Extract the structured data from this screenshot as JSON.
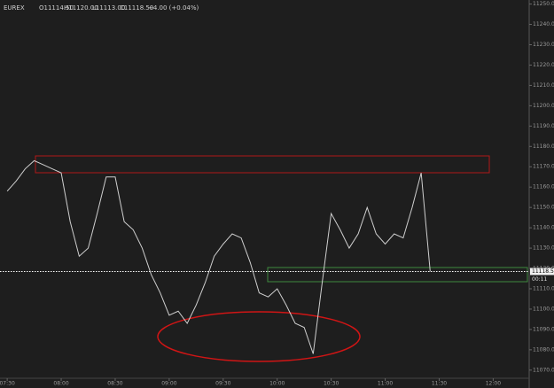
{
  "chart_data": {
    "type": "line",
    "instrument": "EUREX",
    "ohlc_header": [
      "O11114.50",
      "H11120.00",
      "L11113.00",
      "C11118.50",
      "+4.00 (+0.04%)"
    ],
    "x": [
      450,
      455,
      460,
      465,
      470,
      475,
      480,
      485,
      490,
      495,
      500,
      505,
      510,
      515,
      520,
      525,
      530,
      535,
      540,
      545,
      550,
      555,
      560,
      565,
      570,
      575,
      580,
      585,
      590,
      595,
      600,
      605,
      610,
      615,
      620,
      625,
      630,
      635,
      640,
      645,
      650,
      655,
      660,
      665,
      670,
      675,
      680,
      685
    ],
    "series": [
      {
        "color": "#cfcfcf",
        "values": [
          11158,
          11163,
          11169,
          11173,
          11171,
          11169,
          11167,
          11143,
          11126,
          11130,
          11147,
          11165,
          11165,
          11143,
          11139,
          11130,
          11117,
          11108,
          11097,
          11099,
          11093,
          11102,
          11113,
          11126,
          11132,
          11137,
          11135,
          11123,
          11108,
          11106,
          11110,
          11102,
          11093,
          11091,
          11078,
          11113,
          11147,
          11139,
          11130,
          11137,
          11150,
          11137,
          11132,
          11137,
          11135,
          11150,
          11167,
          11118.5
        ]
      }
    ],
    "xlim": [
      446,
      740
    ],
    "xticks": [
      {
        "value": 450,
        "label": "07:30"
      },
      {
        "value": 480,
        "label": "08:00"
      },
      {
        "value": 510,
        "label": "08:30"
      },
      {
        "value": 540,
        "label": "09:00"
      },
      {
        "value": 570,
        "label": "09:30"
      },
      {
        "value": 600,
        "label": "10:00"
      },
      {
        "value": 630,
        "label": "10:30"
      },
      {
        "value": 660,
        "label": "11:00"
      },
      {
        "value": 690,
        "label": "11:30"
      },
      {
        "value": 720,
        "label": "12:00"
      }
    ],
    "ylim": [
      11066,
      11252
    ],
    "yticks": [
      {
        "value": 11250,
        "label": "11250.00"
      },
      {
        "value": 11240,
        "label": "11240.00"
      },
      {
        "value": 11230,
        "label": "11230.00"
      },
      {
        "value": 11220,
        "label": "11220.00"
      },
      {
        "value": 11210,
        "label": "11210.00"
      },
      {
        "value": 11200,
        "label": "11200.00"
      },
      {
        "value": 11190,
        "label": "11190.00"
      },
      {
        "value": 11180,
        "label": "11180.00"
      },
      {
        "value": 11170,
        "label": "11170.00"
      },
      {
        "value": 11160,
        "label": "11160.00"
      },
      {
        "value": 11150,
        "label": "11150.00"
      },
      {
        "value": 11140,
        "label": "11140.00"
      },
      {
        "value": 11130,
        "label": "11130.00"
      },
      {
        "value": 11120,
        "label": "11120.00"
      },
      {
        "value": 11110,
        "label": "11110.00"
      },
      {
        "value": 11100,
        "label": "11100.00"
      },
      {
        "value": 11090,
        "label": "11090.00"
      },
      {
        "value": 11080,
        "label": "11080.00"
      },
      {
        "value": 11070,
        "label": "11070.00"
      }
    ],
    "last_price": {
      "value": 11118.5,
      "label": "11118.50"
    },
    "countdown": "00:11"
  }
}
